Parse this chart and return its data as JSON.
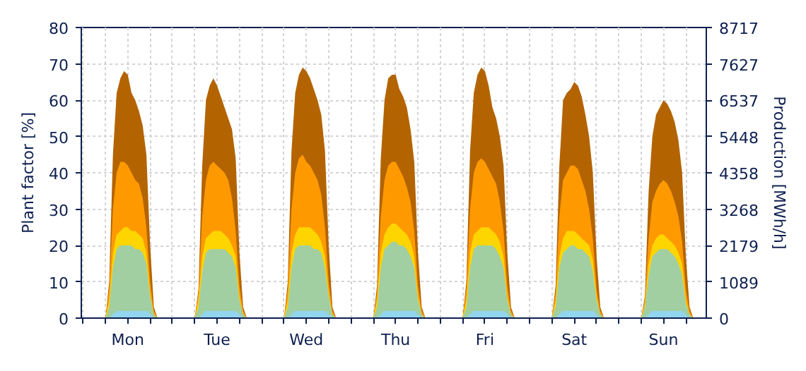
{
  "chart_data": {
    "type": "area",
    "ylabel": "Plant factor [%]",
    "y2label": "Production [MWh/h]",
    "categories": [
      null,
      null,
      null,
      null,
      null,
      null,
      null,
      null,
      null,
      null,
      null,
      null,
      "Mon",
      null,
      null,
      null,
      null,
      null,
      null,
      null,
      null,
      null,
      null,
      null,
      null,
      null,
      null,
      null,
      null,
      null,
      null,
      null,
      null,
      null,
      null,
      null,
      "Tue",
      null,
      null,
      null,
      null,
      null,
      null,
      null,
      null,
      null,
      null,
      null,
      null,
      null,
      null,
      null,
      null,
      null,
      null,
      null,
      null,
      null,
      null,
      null,
      "Wed",
      null,
      null,
      null,
      null,
      null,
      null,
      null,
      null,
      null,
      null,
      null,
      null,
      null,
      null,
      null,
      null,
      null,
      null,
      null,
      null,
      null,
      null,
      null,
      "Thu",
      null,
      null,
      null,
      null,
      null,
      null,
      null,
      null,
      null,
      null,
      null,
      null,
      null,
      null,
      null,
      null,
      null,
      null,
      null,
      null,
      null,
      null,
      null,
      "Fri",
      null,
      null,
      null,
      null,
      null,
      null,
      null,
      null,
      null,
      null,
      null,
      null,
      null,
      null,
      null,
      null,
      null,
      null,
      null,
      null,
      null,
      null,
      null,
      "Sat",
      null,
      null,
      null,
      null,
      null,
      null,
      null,
      null,
      null,
      null,
      null,
      null,
      null,
      null,
      null,
      null,
      null,
      null,
      null,
      null,
      null,
      null,
      null,
      "Sun",
      null,
      null,
      null,
      null,
      null,
      null,
      null,
      null,
      null,
      null,
      null
    ],
    "ylim": [
      0,
      80
    ],
    "yticks": [
      0,
      10,
      20,
      30,
      40,
      50,
      60,
      70,
      80
    ],
    "y2lim": [
      0,
      8717
    ],
    "y2ticks": [
      0,
      1089,
      2179,
      3268,
      4358,
      5448,
      6537,
      7627,
      8717
    ],
    "grid": true,
    "series": [
      {
        "color": "#b36400",
        "values": [
          0,
          0,
          0,
          0,
          0,
          0,
          0,
          10,
          45,
          62,
          66,
          68,
          67,
          62,
          60,
          57,
          53,
          45,
          20,
          3,
          0,
          0,
          0,
          0,
          0,
          0,
          0,
          0,
          0,
          0,
          0,
          8,
          42,
          60,
          64,
          66,
          64,
          61,
          58,
          55,
          52,
          44,
          18,
          3,
          0,
          0,
          0,
          0,
          0,
          0,
          0,
          0,
          0,
          0,
          0,
          10,
          46,
          62,
          67,
          69,
          68,
          66,
          63,
          60,
          56,
          46,
          20,
          3,
          0,
          0,
          0,
          0,
          0,
          0,
          0,
          0,
          0,
          0,
          0,
          9,
          44,
          60,
          66,
          67,
          67,
          63,
          61,
          58,
          52,
          43,
          18,
          3,
          0,
          0,
          0,
          0,
          0,
          0,
          0,
          0,
          0,
          0,
          0,
          10,
          46,
          62,
          67,
          69,
          68,
          64,
          58,
          55,
          50,
          42,
          18,
          3,
          0,
          0,
          0,
          0,
          0,
          0,
          0,
          0,
          0,
          0,
          0,
          9,
          42,
          60,
          62,
          63,
          65,
          64,
          61,
          56,
          50,
          40,
          17,
          3,
          0,
          0,
          0,
          0,
          0,
          0,
          0,
          0,
          0,
          0,
          0,
          6,
          35,
          50,
          56,
          58,
          60,
          59,
          57,
          54,
          49,
          40,
          17,
          3,
          0,
          0,
          0,
          0
        ]
      },
      {
        "color": "#ff9900",
        "values": [
          0,
          0,
          0,
          0,
          0,
          0,
          0,
          8,
          30,
          40,
          43,
          43,
          42,
          40,
          38,
          37,
          33,
          25,
          10,
          2,
          0,
          0,
          0,
          0,
          0,
          0,
          0,
          0,
          0,
          0,
          0,
          7,
          28,
          38,
          42,
          43,
          42,
          41,
          40,
          38,
          33,
          24,
          9,
          2,
          0,
          0,
          0,
          0,
          0,
          0,
          0,
          0,
          0,
          0,
          0,
          8,
          30,
          40,
          44,
          45,
          43,
          42,
          40,
          38,
          34,
          25,
          10,
          2,
          0,
          0,
          0,
          0,
          0,
          0,
          0,
          0,
          0,
          0,
          0,
          7,
          28,
          38,
          42,
          43,
          43,
          41,
          39,
          36,
          32,
          24,
          9,
          2,
          0,
          0,
          0,
          0,
          0,
          0,
          0,
          0,
          0,
          0,
          0,
          8,
          30,
          40,
          43,
          44,
          43,
          41,
          39,
          37,
          32,
          24,
          9,
          2,
          0,
          0,
          0,
          0,
          0,
          0,
          0,
          0,
          0,
          0,
          0,
          7,
          28,
          38,
          40,
          42,
          42,
          41,
          38,
          35,
          30,
          22,
          8,
          2,
          0,
          0,
          0,
          0,
          0,
          0,
          0,
          0,
          0,
          0,
          0,
          5,
          22,
          32,
          35,
          37,
          38,
          37,
          35,
          32,
          28,
          21,
          8,
          2,
          0,
          0,
          0,
          0
        ]
      },
      {
        "color": "#ffd500",
        "values": [
          0,
          0,
          0,
          0,
          0,
          0,
          0,
          5,
          18,
          23,
          24,
          25,
          25,
          24,
          24,
          23,
          22,
          18,
          7,
          1,
          0,
          0,
          0,
          0,
          0,
          0,
          0,
          0,
          0,
          0,
          0,
          5,
          17,
          22,
          23,
          24,
          24,
          24,
          23,
          22,
          20,
          17,
          6,
          1,
          0,
          0,
          0,
          0,
          0,
          0,
          0,
          0,
          0,
          0,
          0,
          5,
          18,
          23,
          25,
          25,
          25,
          25,
          24,
          23,
          21,
          17,
          7,
          1,
          0,
          0,
          0,
          0,
          0,
          0,
          0,
          0,
          0,
          0,
          0,
          5,
          18,
          23,
          25,
          26,
          26,
          25,
          24,
          23,
          21,
          17,
          6,
          1,
          0,
          0,
          0,
          0,
          0,
          0,
          0,
          0,
          0,
          0,
          0,
          5,
          18,
          23,
          24,
          25,
          25,
          25,
          24,
          23,
          21,
          17,
          6,
          1,
          0,
          0,
          0,
          0,
          0,
          0,
          0,
          0,
          0,
          0,
          0,
          5,
          17,
          22,
          24,
          24,
          24,
          23,
          22,
          21,
          20,
          16,
          6,
          1,
          0,
          0,
          0,
          0,
          0,
          0,
          0,
          0,
          0,
          0,
          0,
          4,
          15,
          20,
          22,
          23,
          23,
          22,
          21,
          20,
          18,
          15,
          5,
          1,
          0,
          0,
          0,
          0
        ]
      },
      {
        "color": "#a2cfa2",
        "values": [
          0,
          0,
          0,
          0,
          0,
          0,
          0,
          3,
          14,
          19,
          20,
          20,
          20,
          20,
          19,
          19,
          18,
          15,
          6,
          1,
          0,
          0,
          0,
          0,
          0,
          0,
          0,
          0,
          0,
          0,
          0,
          3,
          13,
          18,
          19,
          19,
          19,
          19,
          19,
          18,
          17,
          14,
          5,
          1,
          0,
          0,
          0,
          0,
          0,
          0,
          0,
          0,
          0,
          0,
          0,
          3,
          14,
          19,
          20,
          20,
          20,
          20,
          19,
          19,
          18,
          14,
          6,
          1,
          0,
          0,
          0,
          0,
          0,
          0,
          0,
          0,
          0,
          0,
          0,
          3,
          14,
          19,
          20,
          21,
          21,
          20,
          20,
          19,
          17,
          14,
          5,
          1,
          0,
          0,
          0,
          0,
          0,
          0,
          0,
          0,
          0,
          0,
          0,
          3,
          14,
          19,
          20,
          20,
          20,
          20,
          20,
          19,
          17,
          14,
          5,
          1,
          0,
          0,
          0,
          0,
          0,
          0,
          0,
          0,
          0,
          0,
          0,
          3,
          14,
          18,
          19,
          20,
          20,
          19,
          19,
          18,
          17,
          13,
          5,
          1,
          0,
          0,
          0,
          0,
          0,
          0,
          0,
          0,
          0,
          0,
          0,
          3,
          12,
          17,
          18,
          19,
          19,
          19,
          18,
          17,
          15,
          12,
          4,
          1,
          0,
          0,
          0,
          0
        ]
      },
      {
        "color": "#91d5ee",
        "values": [
          0,
          0,
          0,
          0,
          0,
          0,
          0,
          0,
          1,
          2,
          2,
          2,
          2,
          2,
          2,
          2,
          2,
          2,
          1,
          0,
          0,
          0,
          0,
          0,
          0,
          0,
          0,
          0,
          0,
          0,
          0,
          0,
          1,
          2,
          2,
          2,
          2,
          2,
          2,
          2,
          2,
          2,
          1,
          0,
          0,
          0,
          0,
          0,
          0,
          0,
          0,
          0,
          0,
          0,
          0,
          0,
          1,
          2,
          2,
          2,
          2,
          2,
          2,
          2,
          2,
          2,
          1,
          0,
          0,
          0,
          0,
          0,
          0,
          0,
          0,
          0,
          0,
          0,
          0,
          0,
          1,
          2,
          2,
          2,
          2,
          2,
          2,
          2,
          2,
          2,
          1,
          0,
          0,
          0,
          0,
          0,
          0,
          0,
          0,
          0,
          0,
          0,
          0,
          0,
          1,
          2,
          2,
          2,
          2,
          2,
          2,
          2,
          2,
          2,
          1,
          0,
          0,
          0,
          0,
          0,
          0,
          0,
          0,
          0,
          0,
          0,
          0,
          0,
          1,
          2,
          2,
          2,
          2,
          2,
          2,
          2,
          2,
          2,
          1,
          0,
          0,
          0,
          0,
          0,
          0,
          0,
          0,
          0,
          0,
          0,
          0,
          0,
          1,
          2,
          2,
          2,
          2,
          2,
          2,
          2,
          2,
          2,
          1,
          0,
          0,
          0,
          0,
          0
        ]
      }
    ]
  }
}
